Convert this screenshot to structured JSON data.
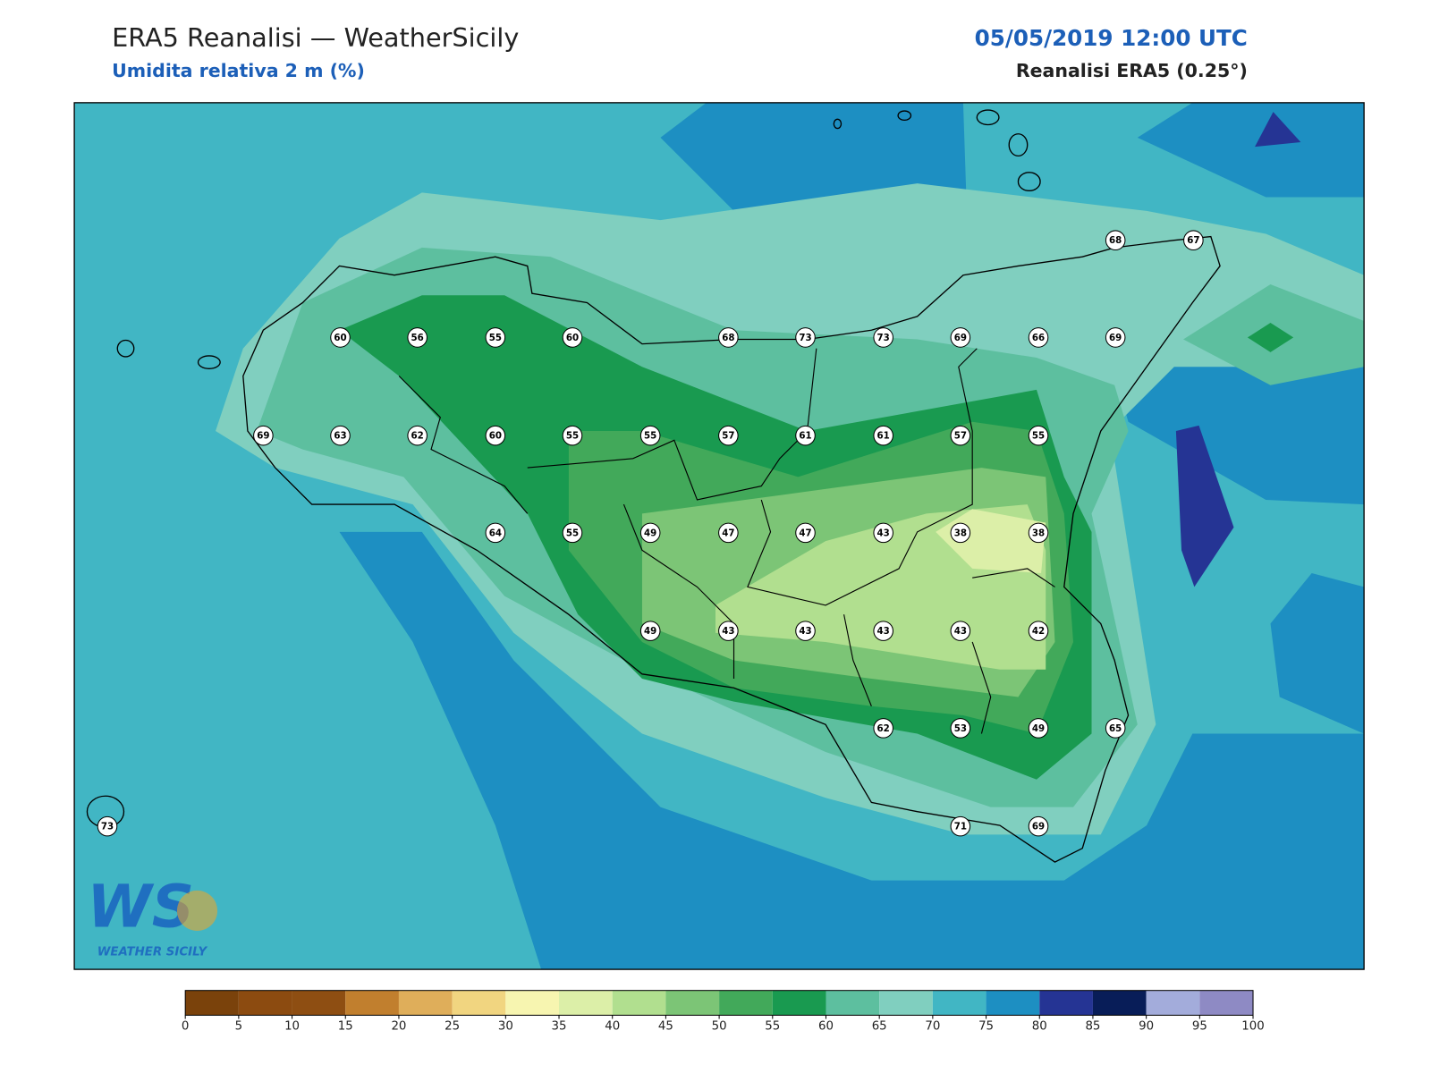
{
  "header": {
    "title": "ERA5 Reanalisi — WeatherSicily",
    "subtitle": "Umidita relativa 2 m (%)",
    "datetime": "05/05/2019 12:00 UTC",
    "source": "Reanalisi ERA5 (0.25°)"
  },
  "stations": [
    68,
    67,
    60,
    56,
    55,
    60,
    68,
    73,
    73,
    69,
    66,
    69,
    69,
    63,
    62,
    60,
    55,
    55,
    57,
    61,
    61,
    57,
    55,
    64,
    55,
    49,
    47,
    47,
    43,
    38,
    38,
    49,
    43,
    43,
    43,
    43,
    42,
    62,
    53,
    49,
    65,
    73,
    71,
    69
  ],
  "colorbar": {
    "ticks": [
      0,
      5,
      10,
      15,
      20,
      25,
      30,
      35,
      40,
      45,
      50,
      55,
      60,
      65,
      70,
      75,
      80,
      85,
      90,
      95,
      100
    ],
    "colors": [
      "#7a420b",
      "#8c4b10",
      "#8e4e12",
      "#c17f2e",
      "#dfae5a",
      "#f1d580",
      "#f7f5b0",
      "#dcefa8",
      "#b1df8f",
      "#7cc576",
      "#42a95a",
      "#199a50",
      "#5dbf9f",
      "#80cfbf",
      "#41b6c4",
      "#1d8fc2",
      "#253494",
      "#081d58",
      "#a3acdb",
      "#8e8ac4"
    ]
  },
  "logo": {
    "mark": "WS",
    "caption": "WEATHER SICILY"
  }
}
